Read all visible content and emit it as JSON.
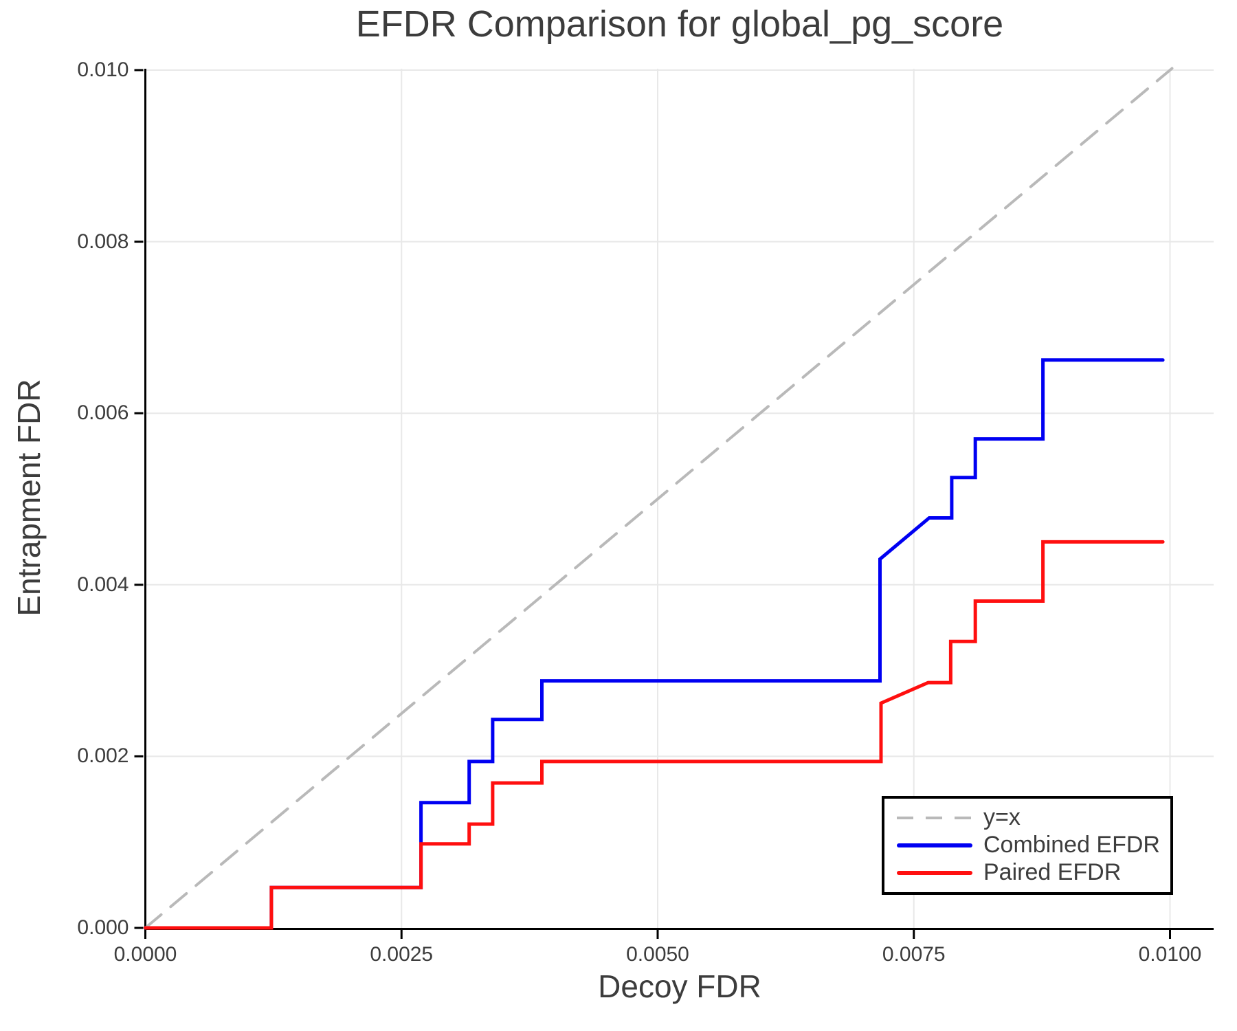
{
  "title": "EFDR Comparison for global_pg_score",
  "axes": {
    "xlabel": "Decoy FDR",
    "ylabel": "Entrapment FDR",
    "xtick_labels": [
      "0.0000",
      "0.0025",
      "0.0050",
      "0.0075",
      "0.0100"
    ],
    "ytick_labels": [
      "0.000",
      "0.002",
      "0.004",
      "0.006",
      "0.008",
      "0.010"
    ]
  },
  "colors": {
    "combined": "#0000f2",
    "paired": "#ff0f0f",
    "identity": "#b9b9b9",
    "grid": "#e8e8e8",
    "spine": "#000000",
    "text": "#3d3d3d"
  },
  "legend": {
    "items": [
      {
        "label": "y=x",
        "color": "#b9b9b9",
        "dashed": true
      },
      {
        "label": "Combined EFDR",
        "color": "#0000f2",
        "dashed": false
      },
      {
        "label": "Paired EFDR",
        "color": "#ff0f0f",
        "dashed": false
      }
    ]
  },
  "chart_data": {
    "type": "line",
    "title": "EFDR Comparison for global_pg_score",
    "xlabel": "Decoy FDR",
    "ylabel": "Entrapment FDR",
    "xlim": [
      0,
      0.01043
    ],
    "ylim": [
      0,
      0.01002
    ],
    "xticks": [
      0.0,
      0.0025,
      0.005,
      0.0075,
      0.01
    ],
    "yticks": [
      0.0,
      0.002,
      0.004,
      0.006,
      0.008,
      0.01
    ],
    "grid": true,
    "legend_position": "lower right",
    "series": [
      {
        "name": "y=x",
        "color": "#b9b9b9",
        "style": "dashed",
        "width": 4,
        "points": [
          [
            0,
            0
          ],
          [
            0.01002,
            0.01002
          ]
        ]
      },
      {
        "name": "Combined EFDR",
        "color": "#0000f2",
        "style": "solid",
        "width": 5,
        "points": [
          [
            0,
            0
          ],
          [
            0.00123,
            0
          ],
          [
            0.00123,
            0.00047
          ],
          [
            0.00269,
            0.00047
          ],
          [
            0.00269,
            0.00146
          ],
          [
            0.00316,
            0.00146
          ],
          [
            0.00316,
            0.00194
          ],
          [
            0.00339,
            0.00194
          ],
          [
            0.00339,
            0.00243
          ],
          [
            0.00387,
            0.00243
          ],
          [
            0.00387,
            0.00288
          ],
          [
            0.00717,
            0.00288
          ],
          [
            0.00717,
            0.0043
          ],
          [
            0.00765,
            0.00478
          ],
          [
            0.00787,
            0.00478
          ],
          [
            0.00787,
            0.00525
          ],
          [
            0.0081,
            0.00525
          ],
          [
            0.0081,
            0.0057
          ],
          [
            0.00876,
            0.0057
          ],
          [
            0.00876,
            0.00662
          ],
          [
            0.00993,
            0.00662
          ]
        ]
      },
      {
        "name": "Paired EFDR",
        "color": "#ff0f0f",
        "style": "solid",
        "width": 5,
        "points": [
          [
            0,
            0
          ],
          [
            0.00123,
            0
          ],
          [
            0.00123,
            0.00047
          ],
          [
            0.00269,
            0.00047
          ],
          [
            0.00269,
            0.00098
          ],
          [
            0.00316,
            0.00098
          ],
          [
            0.00316,
            0.00121
          ],
          [
            0.00339,
            0.00121
          ],
          [
            0.00339,
            0.00169
          ],
          [
            0.00387,
            0.00169
          ],
          [
            0.00387,
            0.00194
          ],
          [
            0.00718,
            0.00194
          ],
          [
            0.00718,
            0.00262
          ],
          [
            0.00764,
            0.00286
          ],
          [
            0.00786,
            0.00286
          ],
          [
            0.00786,
            0.00334
          ],
          [
            0.0081,
            0.00334
          ],
          [
            0.0081,
            0.00381
          ],
          [
            0.00876,
            0.00381
          ],
          [
            0.00876,
            0.0045
          ],
          [
            0.00993,
            0.0045
          ]
        ]
      }
    ]
  }
}
